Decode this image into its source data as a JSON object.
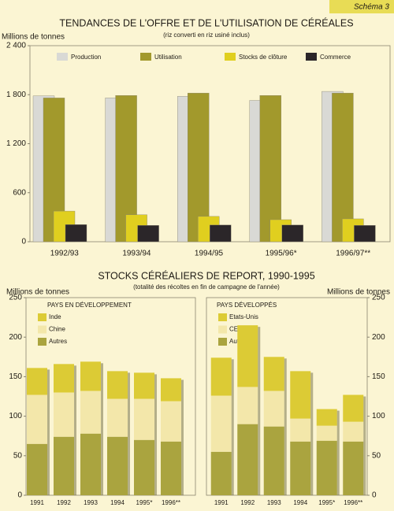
{
  "header": {
    "label": "Schéma 3"
  },
  "chart_data": [
    {
      "type": "bar",
      "title": "TENDANCES DE L'OFFRE ET DE L'UTILISATION DE CÉRÉALES",
      "subtitle": "(riz converti en riz usiné inclus)",
      "y_label": "Millions de tonnes",
      "categories": [
        "1992/93",
        "1993/94",
        "1994/95",
        "1995/96*",
        "1996/97**"
      ],
      "series": [
        {
          "name": "Production",
          "color": "#d9d9d5",
          "values": [
            1785,
            1760,
            1780,
            1730,
            1840
          ]
        },
        {
          "name": "Utilisation",
          "color": "#a2992c",
          "values": [
            1760,
            1790,
            1820,
            1790,
            1820
          ]
        },
        {
          "name": "Stocks de clôture",
          "color": "#e0cf1f",
          "values": [
            375,
            330,
            310,
            270,
            280
          ]
        },
        {
          "name": "Commerce",
          "color": "#2b2629",
          "values": [
            210,
            200,
            205,
            205,
            200
          ]
        }
      ],
      "ylim": [
        0,
        2400
      ],
      "yticks": [
        0,
        600,
        {
          "value": 1200,
          "label": "1 200"
        },
        {
          "value": 1800,
          "label": "1 800"
        },
        {
          "value": 2400,
          "label": "2 400"
        }
      ],
      "legend": "top"
    },
    {
      "type": "stacked-bar",
      "title": "STOCKS CÉRÉALIERS DE REPORT, 1990-1995",
      "subtitle": "(totalité des récoltes en fin de campagne de l'année)",
      "y_label": "Millions de tonnes",
      "panel_title": "PAYS EN DÉVELOPPEMENT",
      "y_axis_side": "left",
      "categories": [
        "1991",
        "1992",
        "1993",
        "1994",
        "1995*",
        "1996**"
      ],
      "series": [
        {
          "name": "Inde",
          "color": "#dccb35",
          "values": [
            34,
            36,
            37,
            35,
            33,
            29
          ]
        },
        {
          "name": "Chine",
          "color": "#f3e7aa",
          "values": [
            62,
            56,
            54,
            48,
            52,
            51
          ]
        },
        {
          "name": "Autres",
          "color": "#aaa43f",
          "values": [
            65,
            74,
            78,
            74,
            70,
            68
          ]
        }
      ],
      "ylim": [
        0,
        250
      ],
      "yticks": [
        0,
        50,
        100,
        150,
        200,
        250
      ],
      "legend": "top-left"
    },
    {
      "type": "stacked-bar",
      "y_label": "Millions de tonnes",
      "panel_title": "PAYS DÉVELOPPÉS",
      "y_axis_side": "right",
      "categories": [
        "1991",
        "1992",
        "1993",
        "1994",
        "1995*",
        "1996**"
      ],
      "series": [
        {
          "name": "Etats-Unis",
          "color": "#dccb35",
          "values": [
            48,
            78,
            43,
            60,
            21,
            34
          ]
        },
        {
          "name": "CEI",
          "color": "#f3e7aa",
          "values": [
            71,
            47,
            45,
            29,
            19,
            25
          ]
        },
        {
          "name": "Autres",
          "color": "#aaa43f",
          "values": [
            55,
            90,
            87,
            68,
            69,
            68
          ]
        }
      ],
      "ylim": [
        0,
        250
      ],
      "yticks": [
        0,
        50,
        100,
        150,
        200,
        250
      ],
      "legend": "top-left"
    }
  ]
}
